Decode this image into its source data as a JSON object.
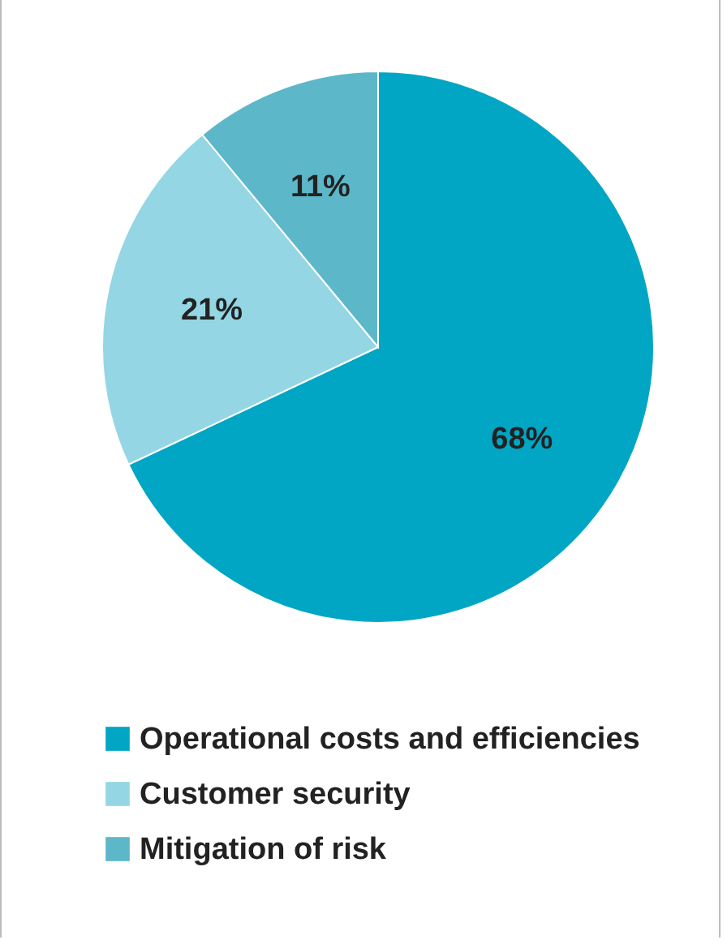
{
  "chart_data": {
    "type": "pie",
    "categories": [
      "Operational costs and efficiencies",
      "Customer security",
      "Mitigation of risk"
    ],
    "values": [
      68,
      21,
      11
    ],
    "colors": [
      "#00a6c4",
      "#94d6e4",
      "#5cb7c9"
    ],
    "value_labels": [
      "68%",
      "21%",
      "11%"
    ],
    "legend": "bottom"
  }
}
